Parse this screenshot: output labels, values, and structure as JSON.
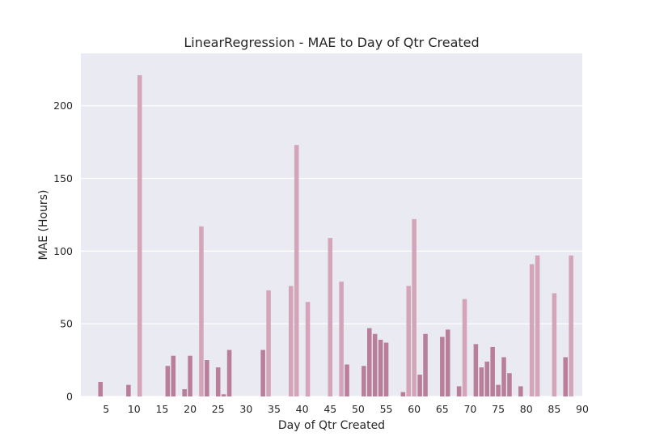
{
  "chart_data": {
    "type": "bar",
    "title": "LinearRegression - MAE to Day of Qtr Created",
    "xlabel": "Day of Qtr Created",
    "ylabel": "MAE (Hours)",
    "ylim": [
      0,
      236
    ],
    "xlim": [
      0.5,
      90
    ],
    "grid": true,
    "legend": "none",
    "x_ticks": [
      5,
      10,
      15,
      20,
      25,
      30,
      35,
      40,
      45,
      50,
      55,
      60,
      65,
      70,
      75,
      80,
      85,
      90
    ],
    "y_ticks": [
      0,
      50,
      100,
      150,
      200
    ],
    "colors": {
      "plot_background": "#eaeaf2",
      "grid": "#ffffff",
      "bar_light": "#d4a5b8",
      "bar_dark": "#b97f9a",
      "text": "#262626"
    },
    "points": [
      {
        "x": 4,
        "y": 10
      },
      {
        "x": 9,
        "y": 8
      },
      {
        "x": 11,
        "y": 221
      },
      {
        "x": 16,
        "y": 21
      },
      {
        "x": 17,
        "y": 28
      },
      {
        "x": 19,
        "y": 5
      },
      {
        "x": 20,
        "y": 28
      },
      {
        "x": 22,
        "y": 117
      },
      {
        "x": 23,
        "y": 25
      },
      {
        "x": 25,
        "y": 20
      },
      {
        "x": 26,
        "y": 1.5
      },
      {
        "x": 27,
        "y": 32
      },
      {
        "x": 33,
        "y": 32
      },
      {
        "x": 34,
        "y": 73
      },
      {
        "x": 38,
        "y": 76
      },
      {
        "x": 39,
        "y": 173
      },
      {
        "x": 41,
        "y": 65
      },
      {
        "x": 45,
        "y": 109
      },
      {
        "x": 47,
        "y": 79
      },
      {
        "x": 48,
        "y": 22
      },
      {
        "x": 51,
        "y": 21
      },
      {
        "x": 52,
        "y": 47
      },
      {
        "x": 53,
        "y": 43
      },
      {
        "x": 54,
        "y": 39
      },
      {
        "x": 55,
        "y": 37
      },
      {
        "x": 58,
        "y": 3
      },
      {
        "x": 59,
        "y": 76
      },
      {
        "x": 60,
        "y": 122
      },
      {
        "x": 61,
        "y": 15
      },
      {
        "x": 62,
        "y": 43
      },
      {
        "x": 65,
        "y": 41
      },
      {
        "x": 66,
        "y": 46
      },
      {
        "x": 68,
        "y": 7
      },
      {
        "x": 69,
        "y": 67
      },
      {
        "x": 71,
        "y": 36
      },
      {
        "x": 72,
        "y": 20
      },
      {
        "x": 73,
        "y": 24
      },
      {
        "x": 74,
        "y": 34
      },
      {
        "x": 75,
        "y": 8
      },
      {
        "x": 76,
        "y": 27
      },
      {
        "x": 77,
        "y": 16
      },
      {
        "x": 79,
        "y": 7
      },
      {
        "x": 81,
        "y": 91
      },
      {
        "x": 82,
        "y": 97
      },
      {
        "x": 85,
        "y": 71
      },
      {
        "x": 87,
        "y": 27
      },
      {
        "x": 88,
        "y": 97
      }
    ]
  }
}
